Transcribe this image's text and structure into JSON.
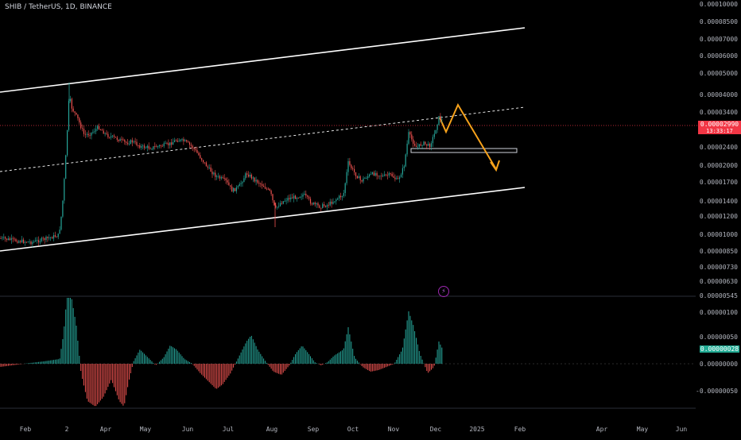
{
  "header": {
    "symbol": "SHIB / TetherUS, 1D, BINANCE"
  },
  "price_axis": {
    "labels": [
      "0.00010000",
      "0.00008500",
      "0.00007000",
      "0.00006000",
      "0.00005000",
      "0.00004000",
      "0.00003400",
      "0.00002400",
      "0.00002000",
      "0.00001700",
      "0.00001400",
      "0.00001200",
      "0.00001000",
      "0.00000850",
      "0.00000730",
      "0.00000630",
      "0.00000545"
    ]
  },
  "last_price": {
    "value": "0.00002990",
    "countdown": "13:33:17",
    "color": "#f23645"
  },
  "oscillator_axis": {
    "labels": [
      "0.00000100",
      "0.00000050",
      "0.00000000",
      "-0.00000050"
    ],
    "current_value": "0.00000028",
    "current_color": "#22ab94"
  },
  "time_axis": {
    "labels": [
      "Feb",
      "2",
      "Apr",
      "May",
      "Jun",
      "Jul",
      "Aug",
      "Sep",
      "Oct",
      "Nov",
      "Dec",
      "2025",
      "Feb",
      "Apr",
      "May",
      "Jun"
    ]
  },
  "colors": {
    "up": "#26a69a",
    "down": "#ef5350",
    "channel": "#ffffff",
    "projection": "#f7a21b",
    "axis_text": "#b2b5be",
    "event_icon": "#9c27b0"
  },
  "event_icon": "lightning-icon"
}
